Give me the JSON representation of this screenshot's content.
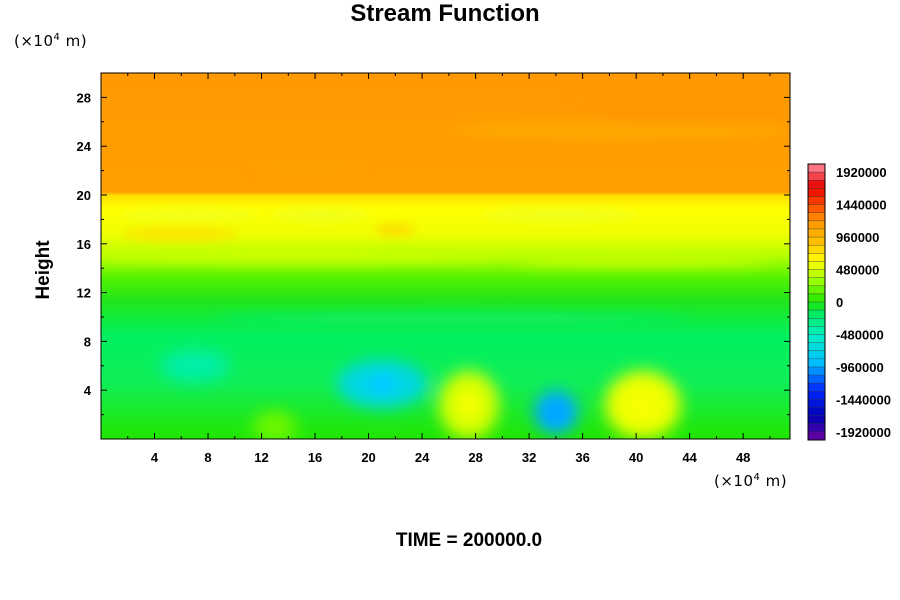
{
  "chart_data": {
    "type": "heatmap",
    "title": "Stream Function",
    "ylabel": "Height",
    "xunit": {
      "prefix": "(×10",
      "exp": "4",
      "suffix": " m)"
    },
    "yunit": {
      "prefix": "(×10",
      "exp": "4",
      "suffix": " m)"
    },
    "xlim": [
      0,
      51.5
    ],
    "ylim": [
      0,
      30
    ],
    "xticks": [
      4,
      8,
      12,
      16,
      20,
      24,
      28,
      32,
      36,
      40,
      44,
      48
    ],
    "yticks": [
      4,
      8,
      12,
      16,
      20,
      24,
      28
    ],
    "colorbar": {
      "ticks": [
        1920000,
        1440000,
        960000,
        480000,
        0,
        -480000,
        -960000,
        -1440000,
        -1920000
      ],
      "range": [
        -2040000,
        2040000
      ]
    },
    "field_description_values": {
      "bands": [
        {
          "y_from": 20,
          "y_to": 30,
          "value": 1150000
        },
        {
          "y_from": 15.5,
          "y_to": 20,
          "value": 700000
        },
        {
          "y_from": 12,
          "y_to": 15.5,
          "value": 300000
        },
        {
          "y_from": 0,
          "y_to": 12,
          "value": -150000
        }
      ],
      "features": [
        {
          "x": 21,
          "y": 4.5,
          "value": -700000
        },
        {
          "x": 34,
          "y": 2.2,
          "value": -950000
        },
        {
          "x": 7,
          "y": 6,
          "value": -400000
        },
        {
          "x": 27.5,
          "y": 2.8,
          "value": 500000
        },
        {
          "x": 40.5,
          "y": 2.8,
          "value": 550000
        },
        {
          "x": 13,
          "y": 1,
          "value": 200000
        },
        {
          "x": 44,
          "y": 27,
          "value": 1200000
        }
      ]
    },
    "time_label": "TIME = 200000.0"
  }
}
